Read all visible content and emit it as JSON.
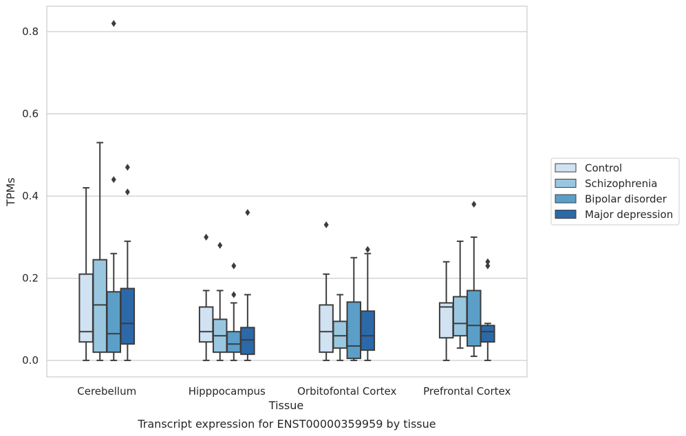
{
  "caption": "Transcript expression for ENST00000359959 by tissue",
  "chart_data": {
    "type": "boxplot",
    "xlabel": "Tissue",
    "ylabel": "TPMs",
    "ylim": [
      -0.04,
      0.862
    ],
    "yticks": [
      "0.0",
      "0.2",
      "0.4",
      "0.6",
      "0.8"
    ],
    "grid": "horizontal",
    "legend_position": "right",
    "categories": [
      "Cerebellum",
      "Hipppocampus",
      "Orbitofontal Cortex",
      "Prefrontal Cortex"
    ],
    "series": [
      {
        "name": "Control",
        "color": "#d1e2f2",
        "boxes": [
          {
            "whislo": 0.0,
            "q1": 0.045,
            "med": 0.07,
            "q3": 0.21,
            "whishi": 0.42,
            "fliers": []
          },
          {
            "whislo": 0.0,
            "q1": 0.045,
            "med": 0.07,
            "q3": 0.13,
            "whishi": 0.17,
            "fliers": [
              0.3
            ]
          },
          {
            "whislo": 0.0,
            "q1": 0.02,
            "med": 0.07,
            "q3": 0.135,
            "whishi": 0.21,
            "fliers": [
              0.33
            ]
          },
          {
            "whislo": 0.0,
            "q1": 0.055,
            "med": 0.13,
            "q3": 0.14,
            "whishi": 0.24,
            "fliers": []
          }
        ]
      },
      {
        "name": "Schizophrenia",
        "color": "#9ac7e0",
        "boxes": [
          {
            "whislo": 0.0,
            "q1": 0.02,
            "med": 0.135,
            "q3": 0.245,
            "whishi": 0.53,
            "fliers": []
          },
          {
            "whislo": 0.0,
            "q1": 0.02,
            "med": 0.06,
            "q3": 0.1,
            "whishi": 0.17,
            "fliers": [
              0.28
            ]
          },
          {
            "whislo": 0.0,
            "q1": 0.03,
            "med": 0.06,
            "q3": 0.095,
            "whishi": 0.16,
            "fliers": []
          },
          {
            "whislo": 0.03,
            "q1": 0.06,
            "med": 0.09,
            "q3": 0.155,
            "whishi": 0.29,
            "fliers": []
          }
        ]
      },
      {
        "name": "Bipolar disorder",
        "color": "#5b9fc9",
        "boxes": [
          {
            "whislo": 0.0,
            "q1": 0.02,
            "med": 0.065,
            "q3": 0.167,
            "whishi": 0.26,
            "fliers": [
              0.44,
              0.82
            ]
          },
          {
            "whislo": 0.0,
            "q1": 0.02,
            "med": 0.04,
            "q3": 0.07,
            "whishi": 0.14,
            "fliers": [
              0.16,
              0.23
            ]
          },
          {
            "whislo": 0.0,
            "q1": 0.005,
            "med": 0.035,
            "q3": 0.142,
            "whishi": 0.25,
            "fliers": []
          },
          {
            "whislo": 0.01,
            "q1": 0.035,
            "med": 0.085,
            "q3": 0.17,
            "whishi": 0.3,
            "fliers": [
              0.38
            ]
          }
        ]
      },
      {
        "name": "Major depression",
        "color": "#2c69a8",
        "boxes": [
          {
            "whislo": 0.0,
            "q1": 0.04,
            "med": 0.09,
            "q3": 0.175,
            "whishi": 0.29,
            "fliers": [
              0.41,
              0.47
            ]
          },
          {
            "whislo": 0.0,
            "q1": 0.015,
            "med": 0.05,
            "q3": 0.08,
            "whishi": 0.16,
            "fliers": [
              0.36
            ]
          },
          {
            "whislo": 0.0,
            "q1": 0.025,
            "med": 0.06,
            "q3": 0.12,
            "whishi": 0.26,
            "fliers": [
              0.27
            ]
          },
          {
            "whislo": 0.0,
            "q1": 0.045,
            "med": 0.07,
            "q3": 0.085,
            "whishi": 0.09,
            "fliers": [
              0.23,
              0.24
            ]
          }
        ]
      }
    ]
  }
}
